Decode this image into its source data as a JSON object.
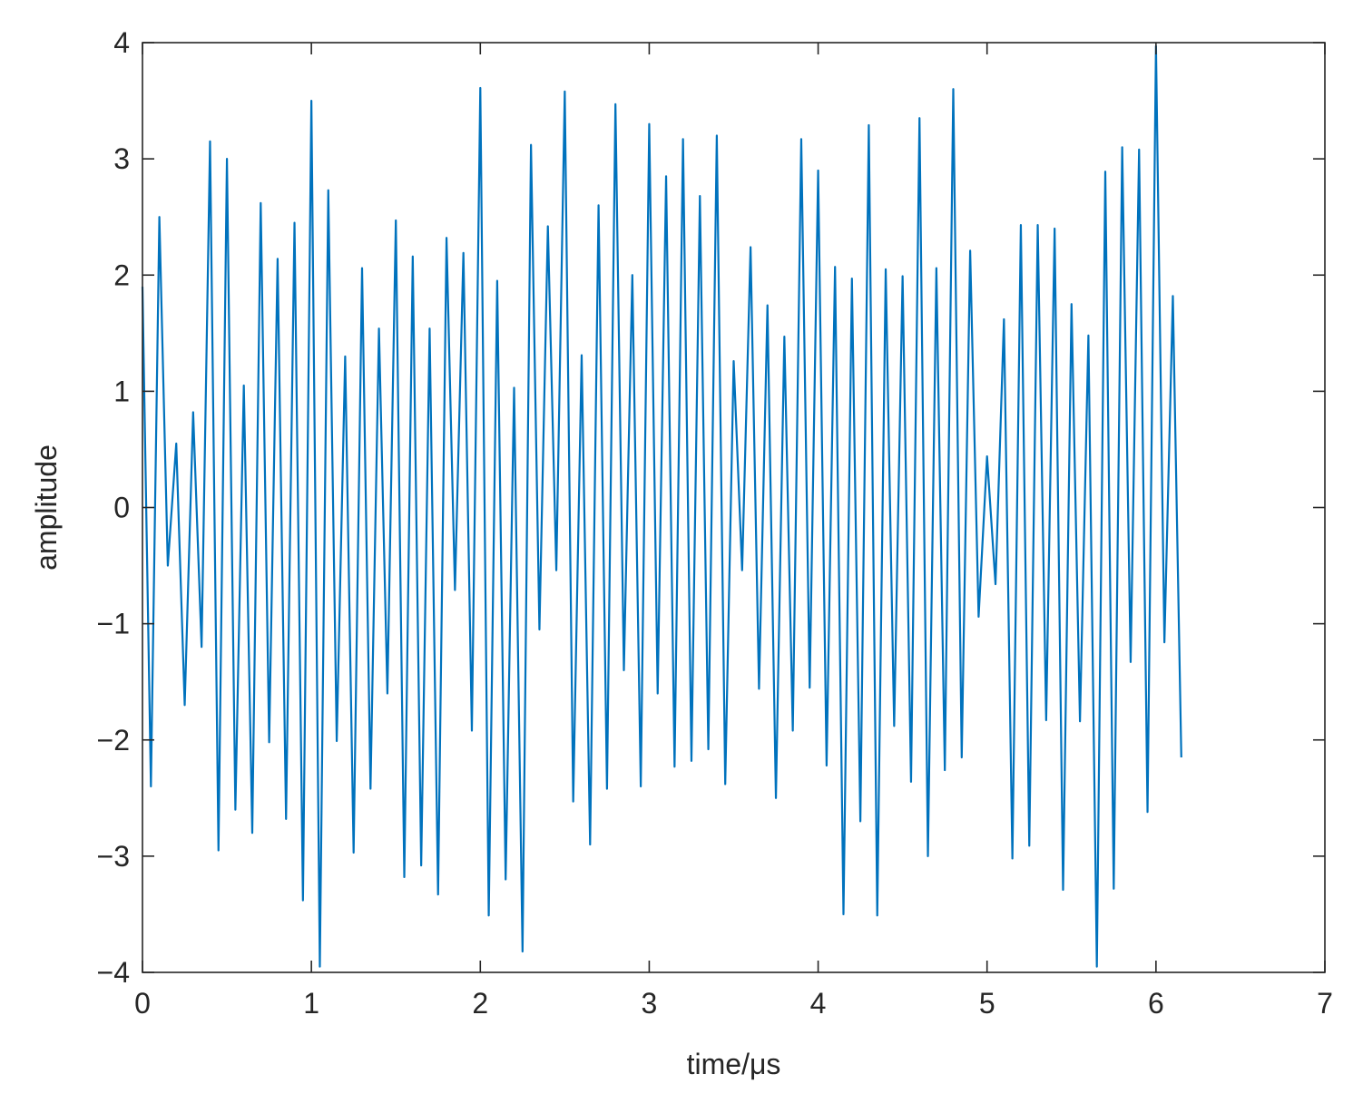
{
  "chart_data": {
    "type": "line",
    "title": "",
    "xlabel": "time/μs",
    "ylabel": "amplitude",
    "xlim": [
      0,
      7
    ],
    "ylim": [
      -4,
      4
    ],
    "xticks": [
      0,
      1,
      2,
      3,
      4,
      5,
      6,
      7
    ],
    "yticks": [
      -4,
      -3,
      -2,
      -1,
      0,
      1,
      2,
      3,
      4
    ],
    "xtick_labels": [
      "0",
      "1",
      "2",
      "3",
      "4",
      "5",
      "6",
      "7"
    ],
    "ytick_labels": [
      "−4",
      "−3",
      "−2",
      "−1",
      "0",
      "1",
      "2",
      "3",
      "4"
    ],
    "grid": false,
    "line_color": "#0072BD",
    "series": [
      {
        "x": [
          0,
          0.05,
          0.1,
          0.15,
          0.2,
          0.25,
          0.3,
          0.35,
          0.4,
          0.45,
          0.5,
          0.55,
          0.6,
          0.65,
          0.7,
          0.75,
          0.8,
          0.85,
          0.9,
          0.95,
          1,
          1.05,
          1.1,
          1.15,
          1.2,
          1.25,
          1.3,
          1.35,
          1.4,
          1.45,
          1.5,
          1.55,
          1.6,
          1.65,
          1.7,
          1.75,
          1.8,
          1.85,
          1.9,
          1.95,
          2,
          2.05,
          2.1,
          2.15,
          2.2,
          2.25,
          2.3,
          2.35,
          2.4,
          2.45,
          2.5,
          2.55,
          2.6,
          2.65,
          2.7,
          2.75,
          2.8,
          2.85,
          2.9,
          2.95,
          3,
          3.05,
          3.1,
          3.15,
          3.2,
          3.25,
          3.3,
          3.35,
          3.4,
          3.45,
          3.5,
          3.55,
          3.6,
          3.65,
          3.7,
          3.75,
          3.8,
          3.85,
          3.9,
          3.95,
          4,
          4.05,
          4.1,
          4.15,
          4.2,
          4.25,
          4.3,
          4.35,
          4.4,
          4.45,
          4.5,
          4.55,
          4.6,
          4.65,
          4.7,
          4.75,
          4.8,
          4.85,
          4.9,
          4.95,
          5,
          5.05,
          5.1,
          5.15,
          5.2,
          5.25,
          5.3,
          5.35,
          5.4,
          5.45,
          5.5,
          5.55,
          5.6,
          5.65,
          5.7,
          5.75,
          5.8,
          5.85,
          5.9,
          5.95,
          6,
          6.05,
          6.1,
          6.15
        ],
        "y": [
          1.9,
          -2.4,
          2.5,
          -0.5,
          0.55,
          -1.7,
          0.82,
          -1.2,
          3.15,
          -2.95,
          3.0,
          -2.6,
          1.05,
          -2.8,
          2.62,
          -2.02,
          2.14,
          -2.68,
          2.45,
          -3.38,
          3.5,
          -3.95,
          2.73,
          -2.01,
          1.3,
          -2.97,
          2.06,
          -2.42,
          1.54,
          -1.6,
          2.47,
          -3.18,
          2.16,
          -3.08,
          1.54,
          -3.33,
          2.32,
          -0.71,
          2.19,
          -1.92,
          3.61,
          -3.51,
          1.95,
          -3.2,
          1.03,
          -3.82,
          3.12,
          -1.05,
          2.42,
          -0.54,
          3.58,
          -2.53,
          1.31,
          -2.9,
          2.6,
          -2.42,
          3.47,
          -1.4,
          2.0,
          -2.4,
          3.3,
          -1.6,
          2.85,
          -2.23,
          3.17,
          -2.18,
          2.68,
          -2.08,
          3.2,
          -2.38,
          1.26,
          -0.54,
          2.24,
          -1.56,
          1.74,
          -2.5,
          1.47,
          -1.92,
          3.17,
          -1.55,
          2.9,
          -2.22,
          2.07,
          -3.5,
          1.97,
          -2.7,
          3.29,
          -3.51,
          2.05,
          -1.88,
          1.99,
          -2.36,
          3.35,
          -3.0,
          2.06,
          -2.26,
          3.6,
          -2.15,
          2.21,
          -0.94,
          0.44,
          -0.66,
          1.62,
          -3.02,
          2.43,
          -2.91,
          2.43,
          -1.83,
          2.4,
          -3.29,
          1.75,
          -1.84,
          1.48,
          -3.95,
          2.89,
          -3.28,
          3.1,
          -1.33,
          3.08,
          -2.62,
          3.97,
          -1.16,
          1.82,
          -2.15
        ]
      }
    ]
  }
}
